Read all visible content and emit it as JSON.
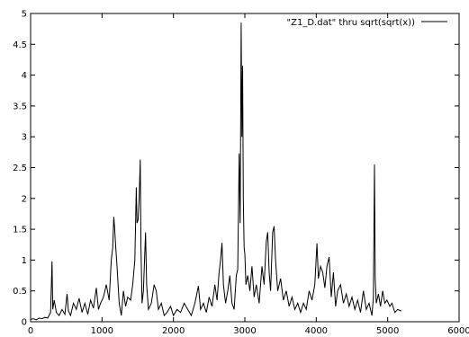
{
  "chart_data": {
    "type": "line",
    "title": "",
    "xlabel": "",
    "ylabel": "",
    "xlim": [
      0,
      6000
    ],
    "ylim": [
      0,
      5
    ],
    "x_ticks": [
      0,
      1000,
      2000,
      3000,
      4000,
      5000,
      6000
    ],
    "x_tick_labels": [
      "0",
      "1000",
      "2000",
      "3000",
      "4000",
      "5000",
      "6000"
    ],
    "y_ticks": [
      0,
      0.5,
      1,
      1.5,
      2,
      2.5,
      3,
      3.5,
      4,
      4.5,
      5
    ],
    "y_tick_labels": [
      "0",
      "0.5",
      "1",
      "1.5",
      "2",
      "2.5",
      "3",
      "3.5",
      "4",
      "4.5",
      "5"
    ],
    "grid": false,
    "legend_position": "top-right",
    "series": [
      {
        "name": "\"Z1_D.dat\" thru sqrt(sqrt(x))",
        "color": "#000000",
        "points": [
          [
            0,
            0.04
          ],
          [
            40,
            0.05
          ],
          [
            80,
            0.03
          ],
          [
            120,
            0.06
          ],
          [
            160,
            0.05
          ],
          [
            200,
            0.07
          ],
          [
            240,
            0.06
          ],
          [
            280,
            0.15
          ],
          [
            300,
            0.98
          ],
          [
            310,
            0.2
          ],
          [
            330,
            0.35
          ],
          [
            360,
            0.15
          ],
          [
            400,
            0.1
          ],
          [
            440,
            0.2
          ],
          [
            480,
            0.12
          ],
          [
            510,
            0.45
          ],
          [
            530,
            0.18
          ],
          [
            560,
            0.1
          ],
          [
            600,
            0.3
          ],
          [
            640,
            0.2
          ],
          [
            680,
            0.38
          ],
          [
            720,
            0.15
          ],
          [
            760,
            0.3
          ],
          [
            800,
            0.12
          ],
          [
            840,
            0.35
          ],
          [
            880,
            0.22
          ],
          [
            920,
            0.55
          ],
          [
            950,
            0.2
          ],
          [
            980,
            0.3
          ],
          [
            1020,
            0.4
          ],
          [
            1060,
            0.6
          ],
          [
            1100,
            0.35
          ],
          [
            1130,
            1.0
          ],
          [
            1150,
            1.2
          ],
          [
            1165,
            1.7
          ],
          [
            1175,
            1.55
          ],
          [
            1190,
            1.25
          ],
          [
            1210,
            0.9
          ],
          [
            1240,
            0.3
          ],
          [
            1270,
            0.1
          ],
          [
            1300,
            0.5
          ],
          [
            1330,
            0.25
          ],
          [
            1360,
            0.4
          ],
          [
            1400,
            0.35
          ],
          [
            1430,
            0.6
          ],
          [
            1460,
            1.0
          ],
          [
            1480,
            2.18
          ],
          [
            1490,
            1.6
          ],
          [
            1505,
            1.65
          ],
          [
            1520,
            2.0
          ],
          [
            1535,
            2.63
          ],
          [
            1545,
            1.2
          ],
          [
            1560,
            0.3
          ],
          [
            1580,
            0.5
          ],
          [
            1610,
            1.45
          ],
          [
            1625,
            0.6
          ],
          [
            1650,
            0.2
          ],
          [
            1690,
            0.3
          ],
          [
            1730,
            0.6
          ],
          [
            1760,
            0.5
          ],
          [
            1790,
            0.2
          ],
          [
            1830,
            0.3
          ],
          [
            1870,
            0.1
          ],
          [
            1910,
            0.15
          ],
          [
            1960,
            0.25
          ],
          [
            2000,
            0.1
          ],
          [
            2050,
            0.2
          ],
          [
            2100,
            0.15
          ],
          [
            2150,
            0.3
          ],
          [
            2200,
            0.2
          ],
          [
            2250,
            0.1
          ],
          [
            2300,
            0.3
          ],
          [
            2350,
            0.58
          ],
          [
            2380,
            0.2
          ],
          [
            2420,
            0.3
          ],
          [
            2460,
            0.15
          ],
          [
            2500,
            0.4
          ],
          [
            2540,
            0.25
          ],
          [
            2580,
            0.6
          ],
          [
            2610,
            0.35
          ],
          [
            2640,
            0.8
          ],
          [
            2660,
            1.0
          ],
          [
            2680,
            1.28
          ],
          [
            2700,
            0.6
          ],
          [
            2730,
            0.3
          ],
          [
            2760,
            0.5
          ],
          [
            2790,
            0.75
          ],
          [
            2820,
            0.3
          ],
          [
            2850,
            0.2
          ],
          [
            2880,
            0.75
          ],
          [
            2900,
            0.85
          ],
          [
            2920,
            2.73
          ],
          [
            2935,
            1.6
          ],
          [
            2948,
            4.85
          ],
          [
            2958,
            3.0
          ],
          [
            2968,
            4.15
          ],
          [
            2978,
            2.0
          ],
          [
            2990,
            1.2
          ],
          [
            3000,
            1.1
          ],
          [
            3015,
            0.6
          ],
          [
            3040,
            0.75
          ],
          [
            3070,
            0.5
          ],
          [
            3100,
            0.9
          ],
          [
            3130,
            0.4
          ],
          [
            3160,
            0.6
          ],
          [
            3200,
            0.3
          ],
          [
            3240,
            0.9
          ],
          [
            3270,
            0.6
          ],
          [
            3300,
            1.3
          ],
          [
            3320,
            1.45
          ],
          [
            3340,
            0.8
          ],
          [
            3360,
            0.5
          ],
          [
            3390,
            1.45
          ],
          [
            3410,
            1.55
          ],
          [
            3430,
            1.0
          ],
          [
            3460,
            0.5
          ],
          [
            3500,
            0.7
          ],
          [
            3540,
            0.35
          ],
          [
            3580,
            0.5
          ],
          [
            3620,
            0.25
          ],
          [
            3660,
            0.4
          ],
          [
            3700,
            0.2
          ],
          [
            3740,
            0.3
          ],
          [
            3780,
            0.15
          ],
          [
            3820,
            0.3
          ],
          [
            3860,
            0.2
          ],
          [
            3900,
            0.5
          ],
          [
            3940,
            0.35
          ],
          [
            3980,
            0.6
          ],
          [
            4010,
            1.27
          ],
          [
            4030,
            0.7
          ],
          [
            4060,
            0.9
          ],
          [
            4090,
            0.8
          ],
          [
            4120,
            0.55
          ],
          [
            4150,
            0.9
          ],
          [
            4180,
            1.05
          ],
          [
            4210,
            0.4
          ],
          [
            4240,
            0.8
          ],
          [
            4270,
            0.25
          ],
          [
            4300,
            0.5
          ],
          [
            4340,
            0.6
          ],
          [
            4380,
            0.3
          ],
          [
            4420,
            0.45
          ],
          [
            4460,
            0.25
          ],
          [
            4500,
            0.4
          ],
          [
            4540,
            0.2
          ],
          [
            4580,
            0.35
          ],
          [
            4620,
            0.15
          ],
          [
            4660,
            0.5
          ],
          [
            4700,
            0.2
          ],
          [
            4740,
            0.3
          ],
          [
            4780,
            0.1
          ],
          [
            4800,
            0.4
          ],
          [
            4815,
            2.55
          ],
          [
            4825,
            0.7
          ],
          [
            4840,
            0.3
          ],
          [
            4870,
            0.45
          ],
          [
            4900,
            0.25
          ],
          [
            4930,
            0.5
          ],
          [
            4960,
            0.3
          ],
          [
            4990,
            0.35
          ],
          [
            5030,
            0.25
          ],
          [
            5060,
            0.3
          ],
          [
            5100,
            0.15
          ],
          [
            5140,
            0.2
          ],
          [
            5180,
            0.18
          ],
          [
            5190,
            0.17
          ]
        ]
      }
    ]
  }
}
